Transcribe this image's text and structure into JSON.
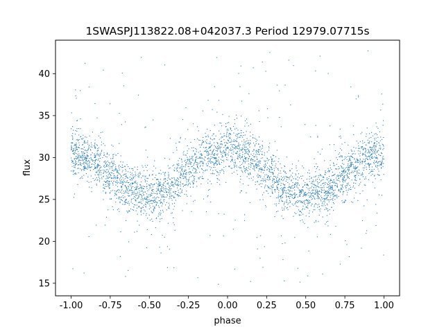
{
  "chart_data": {
    "type": "scatter",
    "title": "1SWASPJ113822.08+042037.3 Period 12979.07715s",
    "xlabel": "phase",
    "ylabel": "flux",
    "xlim": [
      -1.1,
      1.1
    ],
    "ylim": [
      13.5,
      44.0
    ],
    "xticks": [
      "-1.00",
      "-0.75",
      "-0.50",
      "-0.25",
      "0.00",
      "0.25",
      "0.50",
      "0.75",
      "1.00"
    ],
    "xtick_values": [
      -1.0,
      -0.75,
      -0.5,
      -0.25,
      0.0,
      0.25,
      0.5,
      0.75,
      1.0
    ],
    "yticks": [
      "15",
      "20",
      "25",
      "30",
      "35",
      "40"
    ],
    "ytick_values": [
      15,
      20,
      25,
      30,
      35,
      40
    ],
    "grid": false,
    "point_color": "#1f77b4",
    "series": [
      {
        "phase_range": [
          -1.0,
          1.0
        ],
        "trend": {
          "phase": [
            -1.0,
            -0.875,
            -0.75,
            -0.625,
            -0.5,
            -0.375,
            -0.25,
            -0.125,
            0.0,
            0.125,
            0.25,
            0.375,
            0.5,
            0.625,
            0.75,
            0.875,
            1.0
          ],
          "flux": [
            30.5,
            29.9,
            28.0,
            26.1,
            25.4,
            26.2,
            28.5,
            30.2,
            30.9,
            30.3,
            28.5,
            26.3,
            25.4,
            26.0,
            28.0,
            29.9,
            30.5
          ]
        },
        "spread_sigma": 1.4,
        "outlier_range": [
          14.8,
          42.8
        ]
      }
    ]
  }
}
